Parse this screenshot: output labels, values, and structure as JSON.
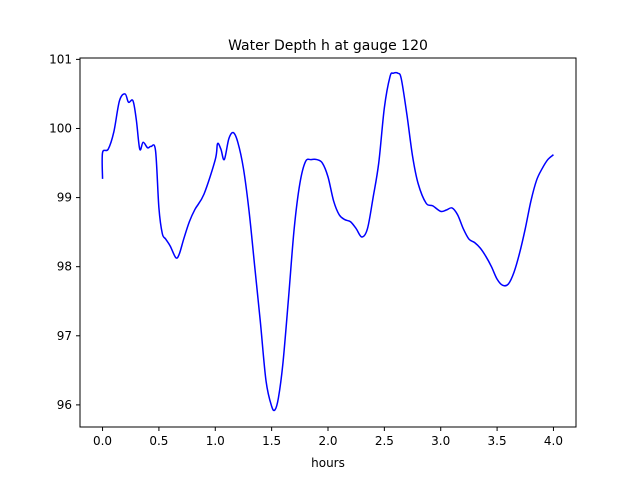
{
  "chart_data": {
    "type": "line",
    "title": "Water Depth h at gauge 120",
    "xlabel": "hours",
    "ylabel": "",
    "xlim": [
      -0.2,
      4.2
    ],
    "ylim": [
      95.68,
      101.02
    ],
    "xticks": [
      0.0,
      0.5,
      1.0,
      1.5,
      2.0,
      2.5,
      3.0,
      3.5,
      4.0
    ],
    "xtick_labels": [
      "0.0",
      "0.5",
      "1.0",
      "1.5",
      "2.0",
      "2.5",
      "3.0",
      "3.5",
      "4.0"
    ],
    "yticks": [
      96,
      97,
      98,
      99,
      100,
      101
    ],
    "ytick_labels": [
      "96",
      "97",
      "98",
      "99",
      "100",
      "101"
    ],
    "grid": false,
    "line_color": "#0000ff",
    "series": [
      {
        "x": [
          0.0,
          0.0,
          0.05,
          0.1,
          0.15,
          0.2,
          0.23,
          0.27,
          0.3,
          0.33,
          0.36,
          0.4,
          0.43,
          0.47,
          0.5,
          0.53,
          0.56,
          0.6,
          0.65,
          0.68,
          0.72,
          0.77,
          0.82,
          0.9,
          1.0,
          1.02,
          1.05,
          1.08,
          1.12,
          1.16,
          1.2,
          1.25,
          1.3,
          1.35,
          1.4,
          1.45,
          1.5,
          1.53,
          1.56,
          1.6,
          1.65,
          1.7,
          1.75,
          1.8,
          1.85,
          1.9,
          1.95,
          2.0,
          2.05,
          2.1,
          2.15,
          2.2,
          2.25,
          2.3,
          2.35,
          2.4,
          2.45,
          2.5,
          2.55,
          2.58,
          2.62,
          2.65,
          2.7,
          2.75,
          2.8,
          2.87,
          2.93,
          3.0,
          3.05,
          3.1,
          3.15,
          3.2,
          3.25,
          3.3,
          3.35,
          3.4,
          3.45,
          3.5,
          3.55,
          3.6,
          3.65,
          3.7,
          3.75,
          3.8,
          3.85,
          3.9,
          3.95,
          4.0
        ],
        "y": [
          99.27,
          99.65,
          99.7,
          99.95,
          100.4,
          100.5,
          100.38,
          100.4,
          100.12,
          99.7,
          99.8,
          99.72,
          99.74,
          99.68,
          98.85,
          98.48,
          98.4,
          98.3,
          98.13,
          98.18,
          98.4,
          98.65,
          98.83,
          99.05,
          99.55,
          99.78,
          99.7,
          99.55,
          99.85,
          99.94,
          99.8,
          99.42,
          98.8,
          98.0,
          97.2,
          96.35,
          95.98,
          95.93,
          96.1,
          96.6,
          97.55,
          98.55,
          99.2,
          99.52,
          99.55,
          99.55,
          99.5,
          99.3,
          98.95,
          98.75,
          98.68,
          98.65,
          98.55,
          98.43,
          98.55,
          99.0,
          99.5,
          100.3,
          100.75,
          100.8,
          100.8,
          100.72,
          100.2,
          99.6,
          99.2,
          98.92,
          98.88,
          98.8,
          98.82,
          98.85,
          98.75,
          98.55,
          98.4,
          98.35,
          98.27,
          98.15,
          98.0,
          97.82,
          97.73,
          97.75,
          97.92,
          98.2,
          98.55,
          98.95,
          99.25,
          99.42,
          99.55,
          99.62
        ]
      }
    ]
  }
}
